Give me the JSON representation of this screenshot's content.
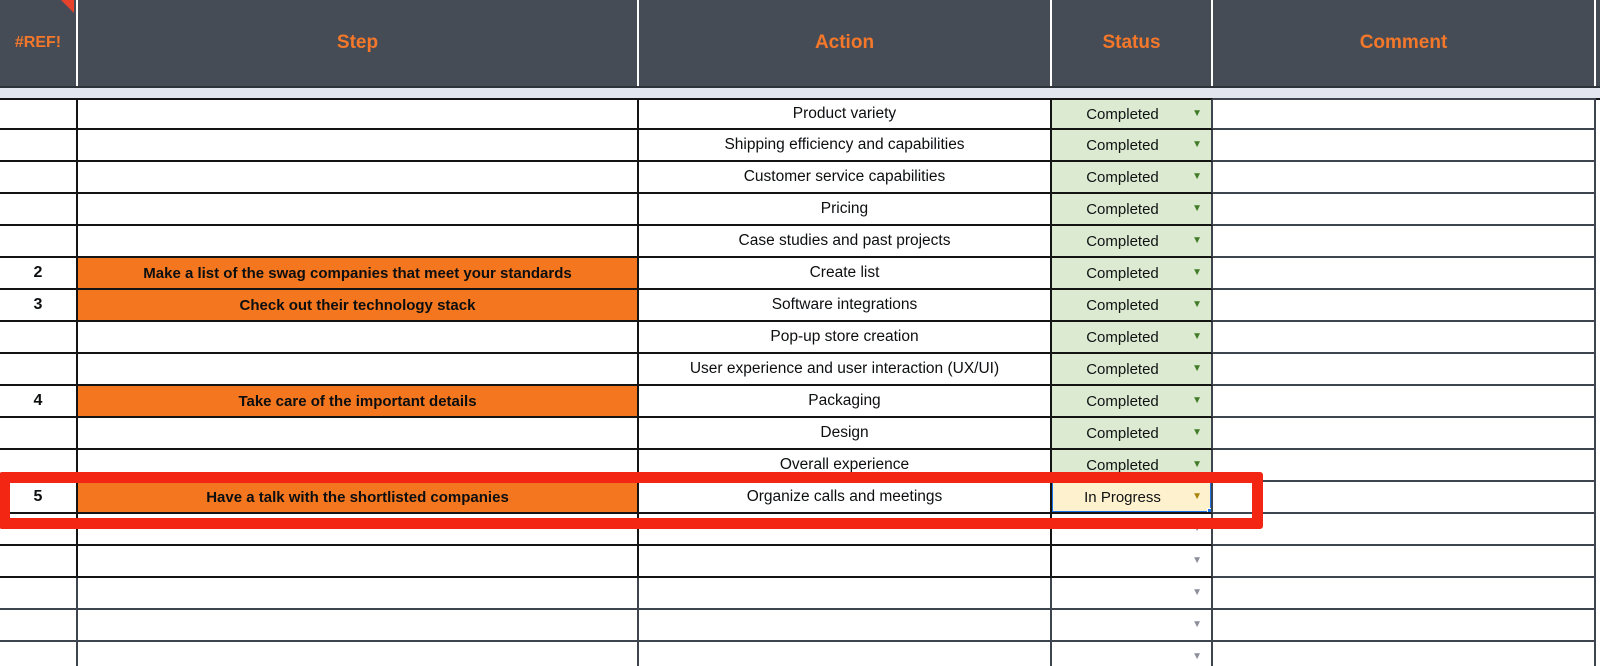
{
  "header": {
    "columns": [
      {
        "key": "ref",
        "label": "#REF!"
      },
      {
        "key": "step",
        "label": "Step"
      },
      {
        "key": "action",
        "label": "Action"
      },
      {
        "key": "status",
        "label": "Status"
      },
      {
        "key": "comment",
        "label": "Comment"
      }
    ],
    "ref_error_marker": "note-triangle"
  },
  "rows": [
    {
      "num": "",
      "step": "",
      "action": "Product variety",
      "status": "Completed",
      "comment": "",
      "selected": false
    },
    {
      "num": "",
      "step": "",
      "action": "Shipping efficiency and capabilities",
      "status": "Completed",
      "comment": "",
      "selected": false
    },
    {
      "num": "",
      "step": "",
      "action": "Customer service capabilities",
      "status": "Completed",
      "comment": "",
      "selected": false
    },
    {
      "num": "",
      "step": "",
      "action": "Pricing",
      "status": "Completed",
      "comment": "",
      "selected": false
    },
    {
      "num": "",
      "step": "",
      "action": "Case studies and past projects",
      "status": "Completed",
      "comment": "",
      "selected": false
    },
    {
      "num": "2",
      "step": "Make a list of the swag companies that meet your standards",
      "action": "Create list",
      "status": "Completed",
      "comment": "",
      "selected": false
    },
    {
      "num": "3",
      "step": "Check out their technology stack",
      "action": "Software integrations",
      "status": "Completed",
      "comment": "",
      "selected": false
    },
    {
      "num": "",
      "step": "",
      "action": "Pop-up store creation",
      "status": "Completed",
      "comment": "",
      "selected": false
    },
    {
      "num": "",
      "step": "",
      "action": "User experience and user interaction (UX/UI)",
      "status": "Completed",
      "comment": "",
      "selected": false
    },
    {
      "num": "4",
      "step": "Take care of the important details",
      "action": "Packaging",
      "status": "Completed",
      "comment": "",
      "selected": false
    },
    {
      "num": "",
      "step": "",
      "action": "Design",
      "status": "Completed",
      "comment": "",
      "selected": false
    },
    {
      "num": "",
      "step": "",
      "action": "Overall experience",
      "status": "Completed",
      "comment": "",
      "selected": false
    },
    {
      "num": "5",
      "step": "Have a talk with the shortlisted companies",
      "action": "Organize calls and meetings",
      "status": "In Progress",
      "comment": "",
      "selected": true
    },
    {
      "num": "",
      "step": "",
      "action": "",
      "status": "",
      "comment": "",
      "selected": false
    },
    {
      "num": "",
      "step": "",
      "action": "",
      "status": "",
      "comment": "",
      "selected": false
    },
    {
      "num": "",
      "step": "",
      "action": "",
      "status": "",
      "comment": "",
      "selected": false
    },
    {
      "num": "",
      "step": "",
      "action": "",
      "status": "",
      "comment": "",
      "selected": false
    },
    {
      "num": "",
      "step": "",
      "action": "",
      "status": "",
      "comment": "",
      "selected": false
    }
  ],
  "status_options_visible": [
    "Completed",
    "In Progress"
  ],
  "dropdown_arrow_glyph": "▼",
  "annotation": {
    "shape": "rectangle",
    "purpose": "highlight-current-row"
  },
  "colors": {
    "header_bg": "#464c55",
    "header_text": "#f4772a",
    "accent_orange": "#f4771f",
    "completed_bg": "#dcead2",
    "completed_arrow": "#3e7b27",
    "inprogress_bg": "#fdf2cd",
    "inprogress_arrow": "#ab8410",
    "selection_blue": "#1a73e8",
    "annotation_red": "#f22613",
    "grid_black": "#141414",
    "grid_slate": "#3f454e",
    "empty_arrow": "#8a8f98",
    "note_red": "#e8422c"
  }
}
